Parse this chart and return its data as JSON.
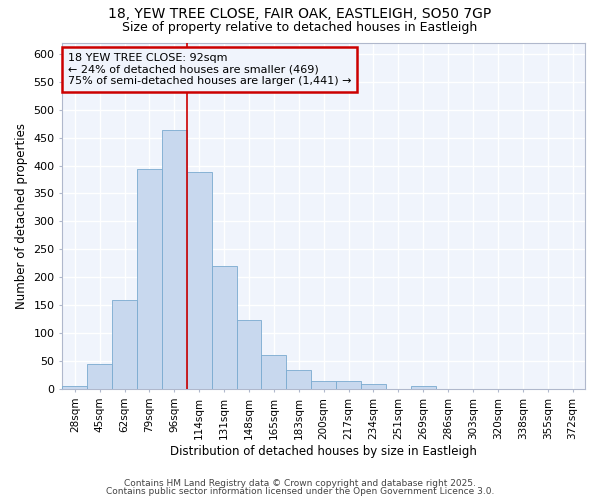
{
  "title1": "18, YEW TREE CLOSE, FAIR OAK, EASTLEIGH, SO50 7GP",
  "title2": "Size of property relative to detached houses in Eastleigh",
  "xlabel": "Distribution of detached houses by size in Eastleigh",
  "ylabel": "Number of detached properties",
  "bar_labels": [
    "28sqm",
    "45sqm",
    "62sqm",
    "79sqm",
    "96sqm",
    "114sqm",
    "131sqm",
    "148sqm",
    "165sqm",
    "183sqm",
    "200sqm",
    "217sqm",
    "234sqm",
    "251sqm",
    "269sqm",
    "286sqm",
    "303sqm",
    "320sqm",
    "338sqm",
    "355sqm",
    "372sqm"
  ],
  "bar_values": [
    5,
    45,
    160,
    393,
    463,
    388,
    220,
    123,
    62,
    35,
    14,
    15,
    9,
    1,
    6,
    0,
    0,
    0,
    0,
    0,
    0
  ],
  "bar_color": "#c8d8ee",
  "bar_edgecolor": "#7aaad0",
  "background_color": "#ffffff",
  "plot_bg_color": "#f0f4fc",
  "grid_color": "#ffffff",
  "annotation_text": "18 YEW TREE CLOSE: 92sqm\n← 24% of detached houses are smaller (469)\n75% of semi-detached houses are larger (1,441) →",
  "annotation_box_edgecolor": "#cc0000",
  "vline_x_index": 4,
  "vline_color": "#cc0000",
  "ylim": [
    0,
    620
  ],
  "yticks": [
    0,
    50,
    100,
    150,
    200,
    250,
    300,
    350,
    400,
    450,
    500,
    550,
    600
  ],
  "footer1": "Contains HM Land Registry data © Crown copyright and database right 2025.",
  "footer2": "Contains public sector information licensed under the Open Government Licence 3.0."
}
